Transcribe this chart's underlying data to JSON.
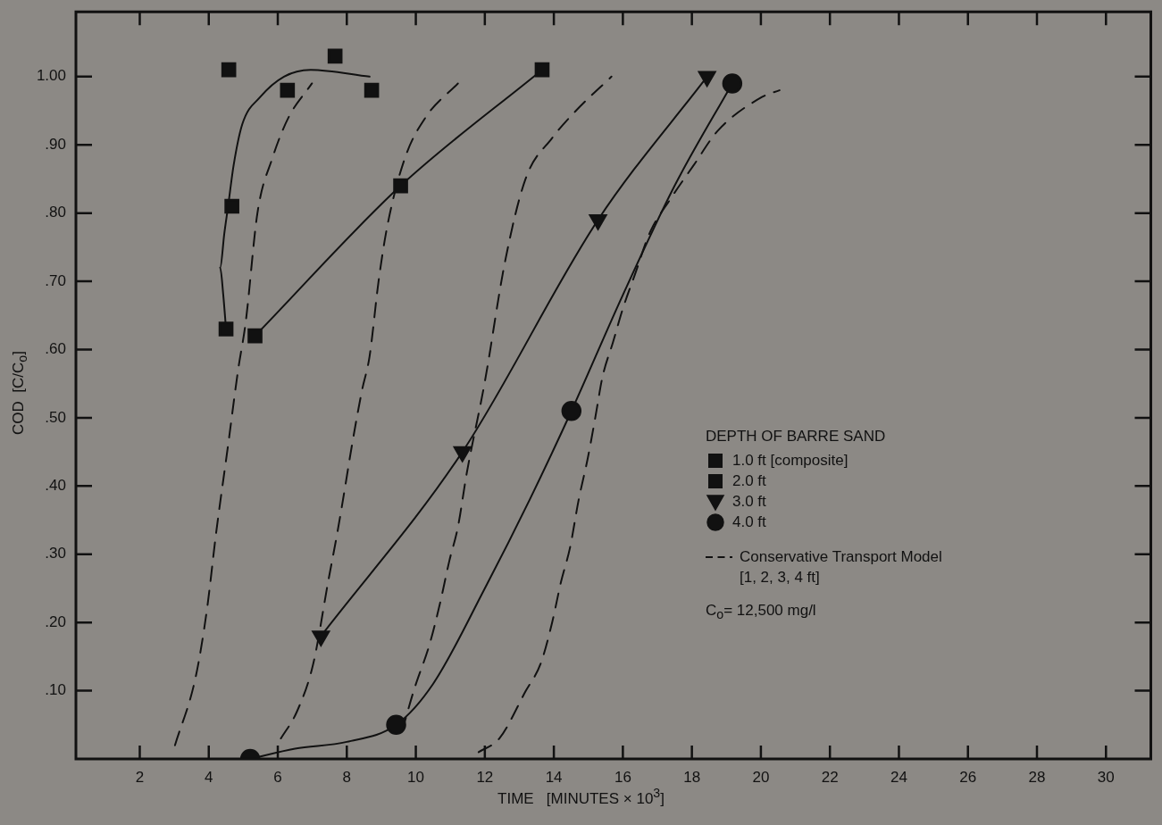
{
  "chart_data": {
    "type": "line",
    "xlabel": "TIME   [MINUTES × 10$^{3}$]",
    "ylabel": "COD  [C/C$_{o}$]",
    "legend_title": "DEPTH OF BARRE SAND",
    "legend": "right",
    "annotations": [
      "C$_{o}$= 12,500 mg/l"
    ],
    "xlim": [
      0.15,
      31.3
    ],
    "ylim": [
      0,
      1.095
    ],
    "xticks": [
      2,
      4,
      6,
      8,
      10,
      12,
      14,
      16,
      18,
      20,
      22,
      24,
      26,
      28,
      30
    ],
    "yticks": [
      {
        "value": 0.1,
        "label": ".10"
      },
      {
        "value": 0.2,
        "label": ".20"
      },
      {
        "value": 0.3,
        "label": ".30"
      },
      {
        "value": 0.4,
        "label": ".40"
      },
      {
        "value": 0.5,
        "label": ".50"
      },
      {
        "value": 0.6,
        "label": ".60"
      },
      {
        "value": 0.7,
        "label": ".70"
      },
      {
        "value": 0.8,
        "label": ".80"
      },
      {
        "value": 0.9,
        "label": ".90"
      },
      {
        "value": 1.0,
        "label": "1.00"
      }
    ],
    "grid": false,
    "series": [
      {
        "name": "1.0 ft [composite]",
        "type": "scatter",
        "marker": "square",
        "color": "#111111",
        "x": [
          4.58,
          4.67,
          4.5,
          6.28,
          7.66,
          8.72
        ],
        "values": [
          1.01,
          0.81,
          0.63,
          0.98,
          1.03,
          0.98
        ]
      },
      {
        "name": "2.0 ft",
        "marker": "square",
        "color": "#111111",
        "x": [
          5.34,
          9.56,
          13.66
        ],
        "values": [
          0.62,
          0.84,
          1.01
        ]
      },
      {
        "name": "3.0 ft",
        "marker": "triangle",
        "color": "#111111",
        "x": [
          7.25,
          11.35,
          15.28,
          18.44
        ],
        "values": [
          0.18,
          0.45,
          0.79,
          1.0
        ]
      },
      {
        "name": "4.0 ft",
        "type": "scatter",
        "marker": "circle",
        "color": "#111111",
        "x": [
          5.2,
          9.43,
          14.51,
          19.17
        ],
        "values": [
          0.0,
          0.05,
          0.51,
          0.99
        ]
      },
      {
        "marker": "none",
        "color": "#111111",
        "x": [
          5.2,
          6.5,
          8.0,
          9.43,
          10.5,
          12.0,
          13.3,
          14.51,
          16.0,
          17.5,
          19.17
        ],
        "values": [
          0.0,
          0.015,
          0.025,
          0.05,
          0.11,
          0.25,
          0.38,
          0.51,
          0.68,
          0.84,
          0.99
        ]
      },
      {
        "marker": "none",
        "color": "#111111",
        "x": [
          4.5,
          4.42,
          4.33,
          4.45,
          4.56,
          4.72,
          4.97,
          5.49,
          6.18,
          6.95,
          8.66
        ],
        "values": [
          0.63,
          0.68,
          0.72,
          0.77,
          0.81,
          0.87,
          0.93,
          0.97,
          1.0,
          1.01,
          1.0
        ]
      },
      {
        "name": "Conservative Transport Model\n[1, 2, 3, 4 ft]",
        "marker": "none",
        "line_style": "dashed",
        "color": "#111111",
        "x": [
          3.02,
          3.62,
          3.95,
          4.21,
          4.56,
          4.85,
          5.07,
          5.41,
          5.84,
          6.31,
          6.99
        ],
        "values": [
          0.02,
          0.12,
          0.22,
          0.33,
          0.46,
          0.57,
          0.64,
          0.8,
          0.88,
          0.94,
          0.99
        ]
      },
      {
        "marker": "none",
        "line_style": "dashed",
        "color": "#111111",
        "x": [
          6.09,
          6.56,
          7.03,
          7.46,
          7.72,
          7.89,
          8.15,
          8.44,
          8.66,
          8.92,
          9.17,
          9.68,
          10.28,
          11.22
        ],
        "values": [
          0.03,
          0.07,
          0.14,
          0.26,
          0.33,
          0.38,
          0.46,
          0.54,
          0.59,
          0.7,
          0.78,
          0.88,
          0.94,
          0.99
        ]
      },
      {
        "marker": "none",
        "line_style": "dashed",
        "color": "#111111",
        "x": [
          9.6,
          9.94,
          10.41,
          10.71,
          10.97,
          11.22,
          11.48,
          11.99,
          12.59,
          13.18,
          13.95,
          14.64,
          15.67
        ],
        "values": [
          0.04,
          0.1,
          0.17,
          0.23,
          0.29,
          0.34,
          0.42,
          0.55,
          0.73,
          0.85,
          0.91,
          0.95,
          1.0
        ]
      },
      {
        "marker": "none",
        "line_style": "dashed",
        "color": "#111111",
        "x": [
          11.82,
          12.42,
          13.19,
          13.62,
          13.95,
          14.21,
          14.47,
          14.72,
          14.98,
          15.2,
          15.41,
          15.71,
          16.0,
          16.35,
          16.77,
          17.37,
          18.05,
          18.74,
          20.03,
          20.54
        ],
        "values": [
          0.01,
          0.03,
          0.1,
          0.14,
          0.2,
          0.26,
          0.31,
          0.38,
          0.44,
          0.5,
          0.56,
          0.61,
          0.66,
          0.71,
          0.77,
          0.82,
          0.87,
          0.92,
          0.97,
          0.98
        ]
      }
    ]
  }
}
